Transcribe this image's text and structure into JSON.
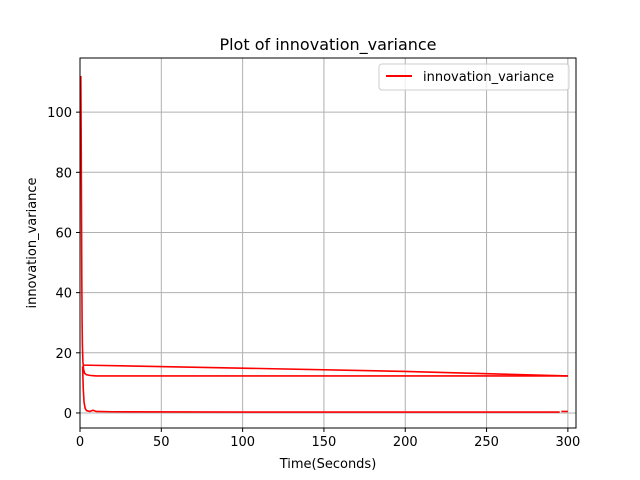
{
  "chart_data": {
    "type": "line",
    "title": "Plot of innovation_variance",
    "xlabel": "Time(Seconds)",
    "ylabel": "innovation_variance",
    "xlim": [
      0,
      305
    ],
    "ylim": [
      -5,
      118
    ],
    "xticks": [
      0,
      50,
      100,
      150,
      200,
      250,
      300
    ],
    "yticks": [
      0,
      20,
      40,
      60,
      80,
      100
    ],
    "grid": true,
    "legend_position": "top-right",
    "colors": {
      "series": "#ff0000",
      "grid": "#b0b0b0"
    },
    "series": [
      {
        "name": "innovation_variance",
        "color": "#ff0000",
        "segments": [
          [
            [
              0.5,
              112
            ],
            [
              0.7,
              95
            ],
            [
              0.9,
              70
            ],
            [
              1.1,
              45
            ],
            [
              1.3,
              30
            ],
            [
              1.5,
              22
            ],
            [
              1.8,
              17
            ],
            [
              2.2,
              14.5
            ],
            [
              2.8,
              13.2
            ],
            [
              4,
              12.7
            ],
            [
              6,
              12.5
            ],
            [
              8,
              12.4
            ],
            [
              10,
              12.3
            ],
            [
              15,
              12.3
            ],
            [
              50,
              12.3
            ],
            [
              100,
              12.3
            ],
            [
              200,
              12.3
            ],
            [
              300,
              12.3
            ]
          ],
          [
            [
              300,
              12.3
            ],
            [
              200,
              13.8
            ],
            [
              100,
              14.9
            ],
            [
              2,
              15.9
            ]
          ],
          [
            [
              1.6,
              15.5
            ],
            [
              2.0,
              8
            ],
            [
              2.5,
              3.5
            ],
            [
              3.2,
              1.5
            ],
            [
              4,
              0.8
            ],
            [
              6,
              0.5
            ],
            [
              8,
              0.9
            ],
            [
              10,
              0.5
            ],
            [
              20,
              0.4
            ],
            [
              100,
              0.3
            ],
            [
              200,
              0.3
            ],
            [
              295,
              0.3
            ]
          ],
          [
            [
              296,
              0.5
            ],
            [
              300,
              0.5
            ]
          ]
        ]
      }
    ]
  }
}
